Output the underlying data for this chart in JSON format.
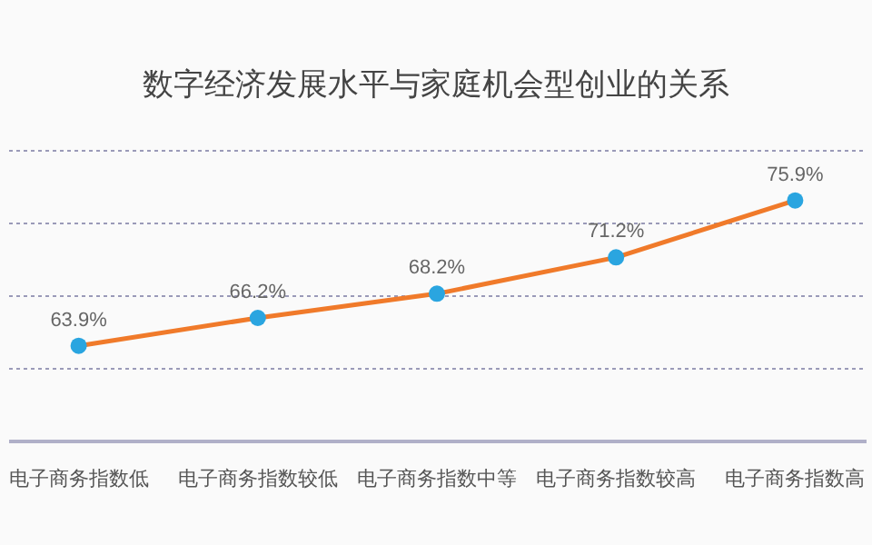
{
  "chart_data": {
    "type": "line",
    "title": "数字经济发展水平与家庭机会型创业的关系",
    "categories": [
      "电子商务指数低",
      "电子商务指数较低",
      "电子商务指数中等",
      "电子商务指数较高",
      "电子商务指数高"
    ],
    "series": [
      {
        "color": "#f07a2a",
        "colors": [
          "#2aa5e0",
          "#2aa5e0",
          "#2aa5e0",
          "#2aa5e0",
          "#2aa5e0"
        ],
        "values": [
          63.9,
          66.2,
          68.2,
          71.2,
          75.9
        ],
        "value_labels": [
          "63.9%",
          "66.2%",
          "68.2%",
          "71.2%",
          "75.9%"
        ]
      }
    ],
    "ylim": [
      56,
      80
    ],
    "yticks": [
      {
        "value": 62,
        "label": null
      },
      {
        "value": 68,
        "label": null
      },
      {
        "value": 74,
        "label": null
      },
      {
        "value": 80,
        "label": null
      }
    ],
    "grid": "y",
    "tick_labels": "x",
    "marker": "circle"
  }
}
